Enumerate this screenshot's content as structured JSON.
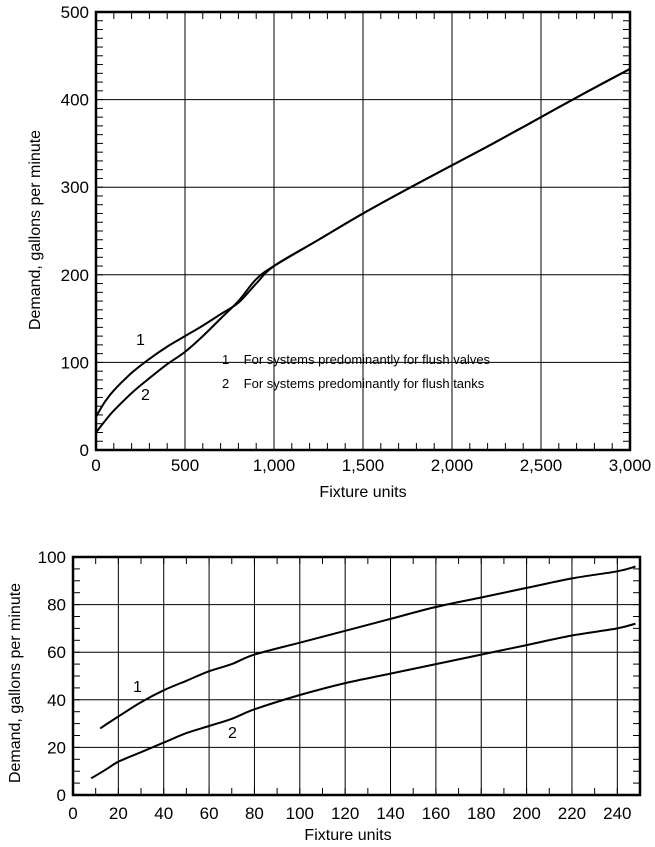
{
  "chart_data": [
    {
      "type": "line",
      "xlabel": "Fixture units",
      "ylabel": "Demand, gallons per minute",
      "xlim": [
        0,
        3000
      ],
      "ylim": [
        0,
        500
      ],
      "xticks": [
        0,
        500,
        1000,
        1500,
        2000,
        2500,
        3000
      ],
      "xtick_labels": [
        "0",
        "500",
        "1,000",
        "1,500",
        "2,000",
        "2,500",
        "3,000"
      ],
      "yticks": [
        0,
        100,
        200,
        300,
        400,
        500
      ],
      "ytick_labels": [
        "0",
        "100",
        "200",
        "300",
        "400",
        "500"
      ],
      "grid": true,
      "series": [
        {
          "name": "1",
          "x": [
            0,
            50,
            100,
            200,
            300,
            400,
            500,
            600,
            700,
            800,
            900,
            1000,
            1250,
            1500,
            1750,
            2000,
            2250,
            2500,
            2750,
            3000
          ],
          "y": [
            38,
            55,
            68,
            88,
            104,
            118,
            130,
            142,
            155,
            168,
            190,
            210,
            240,
            270,
            298,
            325,
            352,
            380,
            408,
            435
          ]
        },
        {
          "name": "2",
          "x": [
            0,
            50,
            100,
            200,
            300,
            400,
            500,
            600,
            700,
            800,
            900,
            1000,
            1250,
            1500,
            1750,
            2000,
            2250,
            2500,
            2750,
            3000
          ],
          "y": [
            20,
            33,
            45,
            65,
            82,
            98,
            112,
            130,
            150,
            170,
            195,
            210,
            240,
            270,
            298,
            325,
            352,
            380,
            408,
            435
          ]
        }
      ],
      "curve_labels": [
        "1",
        "2"
      ],
      "legend": [
        "1    For systems predominantly for flush valves",
        "2    For systems predominantly for flush tanks"
      ]
    },
    {
      "type": "line",
      "xlabel": "Fixture units",
      "ylabel": "Demand, gallons per minute",
      "xlim": [
        0,
        250
      ],
      "ylim": [
        0,
        100
      ],
      "xticks": [
        0,
        20,
        40,
        60,
        80,
        100,
        120,
        140,
        160,
        180,
        200,
        220,
        240
      ],
      "xtick_labels": [
        "0",
        "20",
        "40",
        "60",
        "80",
        "100",
        "120",
        "140",
        "160",
        "180",
        "200",
        "220",
        "240"
      ],
      "yticks": [
        0,
        20,
        40,
        60,
        80,
        100
      ],
      "ytick_labels": [
        "0",
        "20",
        "40",
        "60",
        "80",
        "100"
      ],
      "grid": true,
      "series": [
        {
          "name": "1",
          "x": [
            12,
            20,
            30,
            40,
            50,
            60,
            70,
            80,
            100,
            120,
            140,
            160,
            180,
            200,
            220,
            240,
            248
          ],
          "y": [
            28,
            33,
            39,
            44,
            48,
            52,
            55,
            59,
            64,
            69,
            74,
            79,
            83,
            87,
            91,
            94,
            96
          ]
        },
        {
          "name": "2",
          "x": [
            8,
            15,
            20,
            30,
            40,
            50,
            60,
            70,
            80,
            100,
            120,
            140,
            160,
            180,
            200,
            220,
            240,
            248
          ],
          "y": [
            7,
            11,
            14,
            18,
            22,
            26,
            29,
            32,
            36,
            42,
            47,
            51,
            55,
            59,
            63,
            67,
            70,
            72
          ]
        }
      ],
      "curve_labels": [
        "1",
        "2"
      ]
    }
  ]
}
